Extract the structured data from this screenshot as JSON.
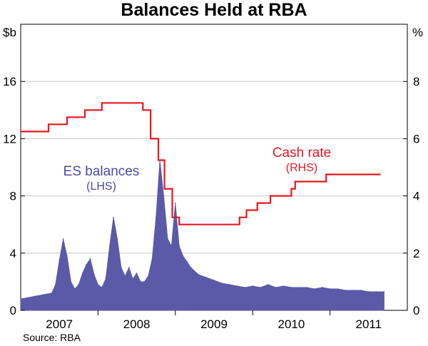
{
  "chart_data": {
    "type": "line",
    "title": "Balances Held at RBA",
    "left_unit": "$b",
    "right_unit": "%",
    "source": "Source: RBA",
    "x_range": [
      2006.5,
      2011.5
    ],
    "x_ticks": [
      {
        "label": "2007",
        "center": 2007.0
      },
      {
        "label": "2008",
        "center": 2008.0
      },
      {
        "label": "2009",
        "center": 2009.0
      },
      {
        "label": "2010",
        "center": 2010.0
      },
      {
        "label": "2011",
        "center": 2011.0
      }
    ],
    "year_boundaries": [
      2007.5,
      2008.5,
      2009.5,
      2010.5
    ],
    "ylim_left": [
      0,
      20
    ],
    "ylim_right": [
      0,
      10
    ],
    "left_ticks": [
      "0",
      "4",
      "8",
      "12",
      "16"
    ],
    "left_tick_values": [
      0,
      4,
      8,
      12,
      16
    ],
    "right_ticks": [
      "0",
      "2",
      "4",
      "6",
      "8"
    ],
    "right_tick_values": [
      0,
      2,
      4,
      6,
      8
    ],
    "grid": true,
    "series": [
      {
        "name": "ES balances",
        "label_line1": "ES balances",
        "label_line2": "(LHS)",
        "axis": "left",
        "style": "area",
        "color": "#5a5aa8",
        "x": [
          2006.5,
          2006.6,
          2006.7,
          2006.8,
          2006.9,
          2006.95,
          2007.0,
          2007.05,
          2007.1,
          2007.15,
          2007.2,
          2007.25,
          2007.3,
          2007.35,
          2007.4,
          2007.45,
          2007.5,
          2007.55,
          2007.6,
          2007.65,
          2007.7,
          2007.75,
          2007.8,
          2007.85,
          2007.9,
          2007.95,
          2008.0,
          2008.05,
          2008.1,
          2008.15,
          2008.2,
          2008.25,
          2008.3,
          2008.35,
          2008.4,
          2008.45,
          2008.5,
          2008.55,
          2008.6,
          2008.65,
          2008.7,
          2008.8,
          2008.9,
          2009.0,
          2009.1,
          2009.2,
          2009.3,
          2009.4,
          2009.5,
          2009.6,
          2009.7,
          2009.8,
          2009.9,
          2010.0,
          2010.1,
          2010.2,
          2010.3,
          2010.4,
          2010.5,
          2010.6,
          2010.7,
          2010.8,
          2010.9,
          2011.0,
          2011.1,
          2011.2
        ],
        "values": [
          0.8,
          0.9,
          1.0,
          1.1,
          1.2,
          1.8,
          3.5,
          5.0,
          3.8,
          2.0,
          1.5,
          1.8,
          2.6,
          3.2,
          3.6,
          2.5,
          1.8,
          1.6,
          2.2,
          4.5,
          6.5,
          5.0,
          3.0,
          2.4,
          3.0,
          2.2,
          2.6,
          2.0,
          2.0,
          2.4,
          3.6,
          6.5,
          10.5,
          8.0,
          5.0,
          4.5,
          7.5,
          4.5,
          3.8,
          3.4,
          3.0,
          2.5,
          2.3,
          2.1,
          1.9,
          1.8,
          1.7,
          1.6,
          1.7,
          1.6,
          1.8,
          1.6,
          1.7,
          1.6,
          1.6,
          1.6,
          1.5,
          1.6,
          1.5,
          1.5,
          1.4,
          1.4,
          1.4,
          1.3,
          1.3,
          1.3
        ]
      },
      {
        "name": "Cash rate",
        "label_line1": "Cash rate",
        "label_line2": "(RHS)",
        "axis": "right",
        "style": "step",
        "color": "#e8181f",
        "x": [
          2006.5,
          2006.86,
          2007.1,
          2007.33,
          2007.55,
          2008.08,
          2008.18,
          2008.28,
          2008.36,
          2008.46,
          2008.55,
          2008.7,
          2009.25,
          2009.33,
          2009.42,
          2009.56,
          2009.63,
          2009.73,
          2010.0,
          2010.05,
          2010.35,
          2010.45,
          2011.0,
          2011.15
        ],
        "values": [
          6.25,
          6.5,
          6.75,
          7.0,
          7.25,
          7.0,
          6.0,
          5.25,
          4.25,
          3.25,
          3.0,
          3.0,
          3.0,
          3.25,
          3.5,
          3.75,
          3.75,
          4.0,
          4.25,
          4.5,
          4.5,
          4.75,
          4.75,
          4.75
        ]
      }
    ]
  }
}
